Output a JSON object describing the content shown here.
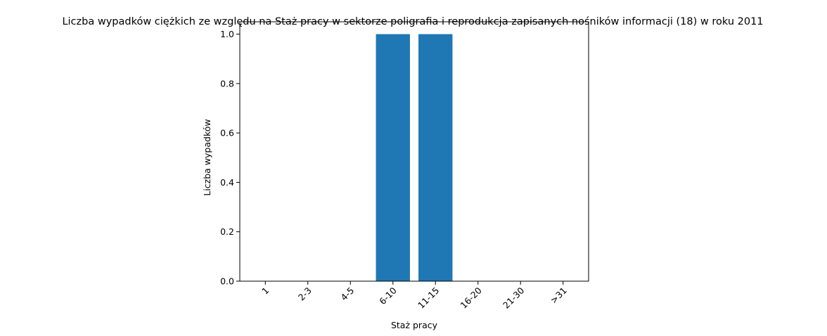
{
  "chart_data": {
    "type": "bar",
    "title": "Liczba wypadków ciężkich ze względu na Staż pracy w sektorze poligrafia i reprodukcja zapisanych nośników informacji  (18) w roku 2011",
    "xlabel": "Staż pracy",
    "ylabel": "Liczba wypadków",
    "categories": [
      "1",
      "2-3",
      "4-5",
      "6-10",
      "11-15",
      "16-20",
      "21-30",
      ">31"
    ],
    "values": [
      0,
      0,
      0,
      1,
      1,
      0,
      0,
      0
    ],
    "ylim": [
      0,
      1.05
    ],
    "yticks": [
      "0.0",
      "0.2",
      "0.4",
      "0.6",
      "0.8",
      "1.0"
    ],
    "grid": false,
    "bar_color": "#1f77b4"
  }
}
